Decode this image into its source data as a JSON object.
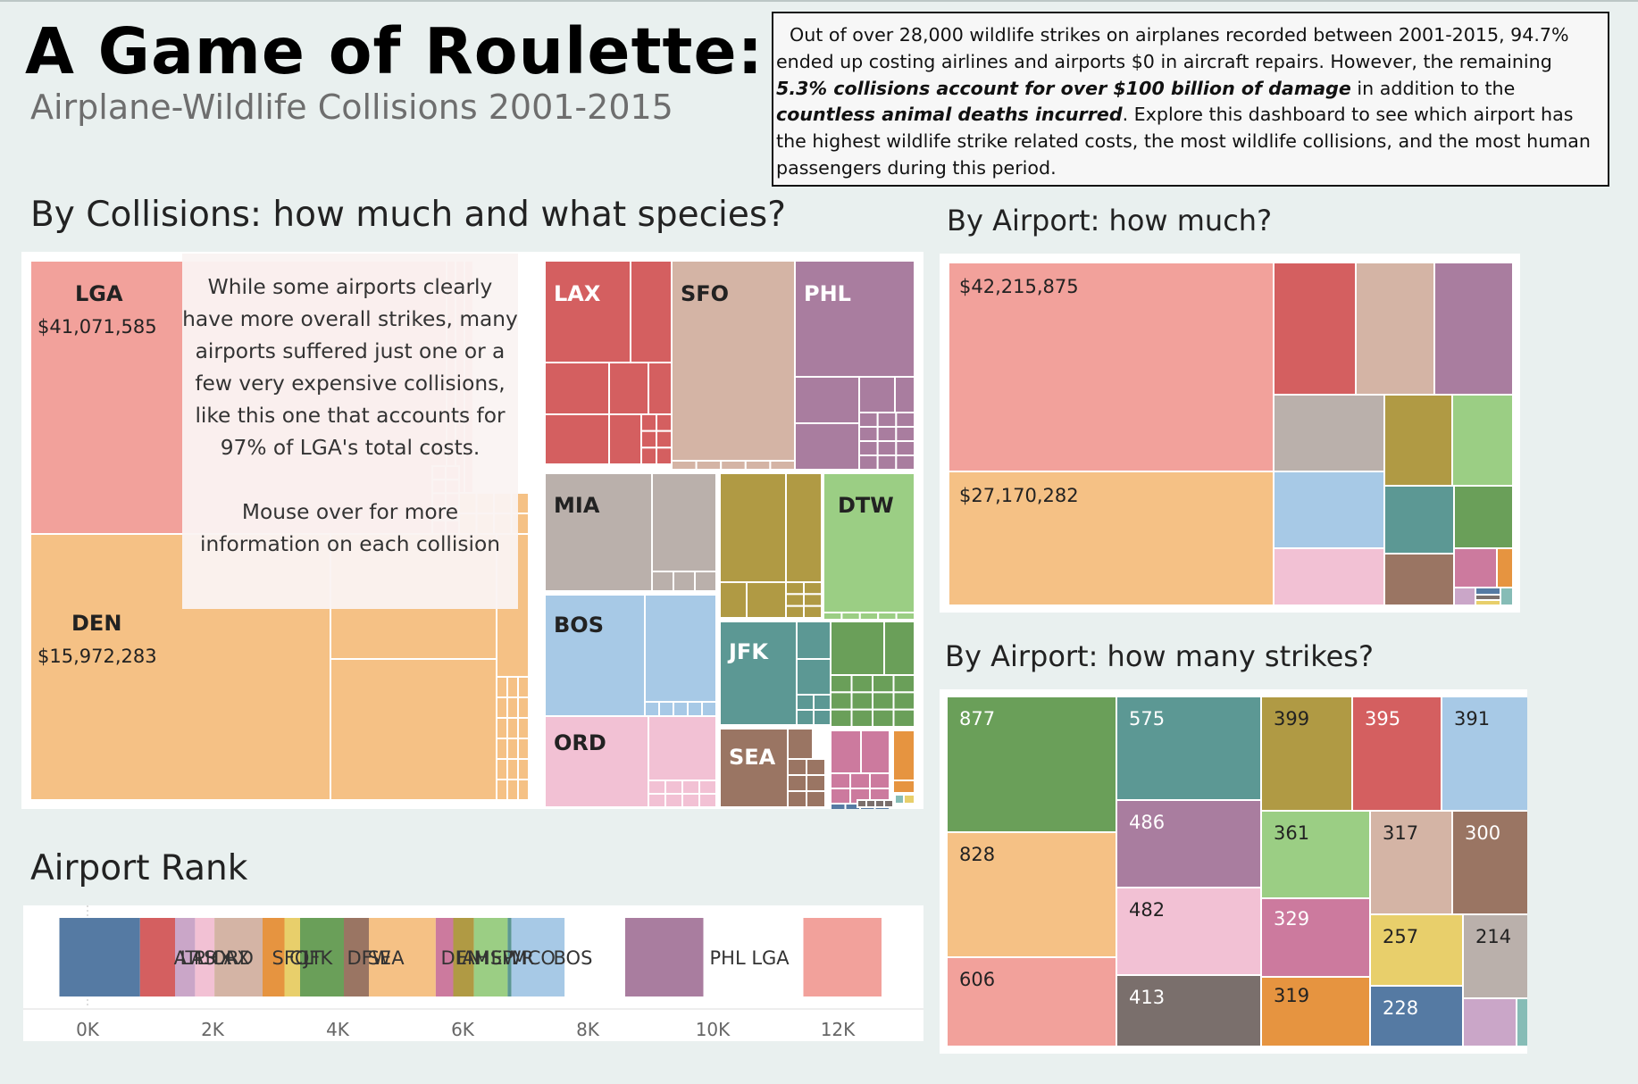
{
  "page": {
    "title": "A Game of Roulette:",
    "subtitle": "Airplane-Wildlife Collisions 2001-2015",
    "intro": {
      "p1": "Out of over 28,000 wildlife strikes on airplanes recorded between 2001-2015, 94.7% ended up costing airlines and airports $0 in aircraft repairs. However, the remaining ",
      "b1": "5.3% collisions account for over $100 billion of damage",
      "p2": " in addition to the ",
      "b2": "countless animal deaths incurred",
      "p3": ". Explore this dashboard to see which airport has the highest wildlife strike related costs, the most wildlife collisions, and the most human passengers during this period."
    }
  },
  "colors": {
    "LGA": "#f2a19b",
    "DEN": "#f5c185",
    "LAX": "#d45f60",
    "SFO": "#d4b4a5",
    "PHL": "#a97d9f",
    "MIA": "#bab0ab",
    "DTW": "#9bce84",
    "BOS": "#a7c9e6",
    "ORD": "#f2c1d4",
    "JFK": "#5c9894",
    "SEA": "#9a7563",
    "OLIVE": "#b09a44",
    "GREEN": "#6a9f59",
    "PINK": "#cc7a9e",
    "ORANGE": "#e69440",
    "YELLOW": "#e8cf6b",
    "BLUE": "#557aa3",
    "DARK": "#7a6f6c",
    "LAVENDER": "#caa6c8",
    "TEAL": "#86bcb6"
  },
  "collisions": {
    "title": "By Collisions: how much and what species?",
    "labels": {
      "LGA": "LGA",
      "LGA_value": "$41,071,585",
      "DEN": "DEN",
      "DEN_value": "$15,972,283",
      "LAX": "LAX",
      "SFO": "SFO",
      "PHL": "PHL",
      "MIA": "MIA",
      "DTW": "DTW",
      "BOS": "BOS",
      "JFK": "JFK",
      "ORD": "ORD",
      "SEA": "SEA"
    },
    "callout": {
      "text1": "While some airports clearly have more overall strikes, many airports suffered just one or a few very expensive collisions, like this one that accounts for 97% of LGA's total costs.",
      "text2": "Mouse over for more information on each collision"
    }
  },
  "cost": {
    "title": "By Airport: how much?",
    "labels": {
      "LGA": "$42,215,875",
      "DEN": "$27,170,282"
    }
  },
  "strikes": {
    "title": "By Airport: how many strikes?",
    "labels": {
      "GREEN": "877",
      "JFK": "575",
      "OLIVE": "399",
      "LAX": "395",
      "BOS": "391",
      "PHL": "486",
      "DEN": "828",
      "DTW": "361",
      "SFO": "317",
      "SEA": "300",
      "ORD": "482",
      "PINK": "329",
      "YELLOW": "257",
      "MIA": "214",
      "LGA": "606",
      "DARK": "413",
      "ORANGE": "319",
      "BLUE": "228"
    }
  },
  "rank": {
    "title": "Airport Rank",
    "inline_labels": [
      "ATL LAX",
      "LAS",
      "PHX",
      "ORD",
      "SFO",
      "CLT",
      "JFK",
      "DFW",
      "SEA",
      "DEN",
      "IAH",
      "MSP",
      "EWR",
      "MCO",
      "BOS",
      "PHL LGA"
    ]
  },
  "chart_data": [
    {
      "type": "treemap",
      "title": "By Collisions: how much and what species?",
      "groups": [
        {
          "name": "LGA",
          "value": 41071585
        },
        {
          "name": "DEN",
          "value": 15972283
        },
        {
          "name": "LAX"
        },
        {
          "name": "SFO"
        },
        {
          "name": "PHL"
        },
        {
          "name": "MIA"
        },
        {
          "name": "DTW"
        },
        {
          "name": "BOS"
        },
        {
          "name": "JFK"
        },
        {
          "name": "ORD"
        },
        {
          "name": "SEA"
        }
      ]
    },
    {
      "type": "treemap",
      "title": "By Airport: how much?",
      "values": [
        42215875,
        27170282
      ]
    },
    {
      "type": "treemap",
      "title": "By Airport: how many strikes?",
      "values": [
        877,
        828,
        606,
        575,
        486,
        482,
        413,
        399,
        395,
        391,
        361,
        329,
        319,
        317,
        300,
        257,
        228,
        214
      ]
    },
    {
      "type": "bar",
      "title": "Airport Rank",
      "orientation": "horizontal-stacked",
      "xticks": [
        "0K",
        "2K",
        "4K",
        "6K",
        "8K",
        "10K",
        "12K"
      ],
      "xlim": [
        0,
        13500
      ],
      "segments": [
        {
          "color": "BLUE",
          "start": -450,
          "end": 840
        },
        {
          "color": "LAX",
          "start": 840,
          "end": 1400
        },
        {
          "color": "LAVENDER",
          "start": 1400,
          "end": 1720
        },
        {
          "color": "ORD",
          "start": 1720,
          "end": 2030
        },
        {
          "color": "SFO",
          "start": 2030,
          "end": 2800
        },
        {
          "color": "ORANGE",
          "start": 2800,
          "end": 3150
        },
        {
          "color": "YELLOW",
          "start": 3150,
          "end": 3400
        },
        {
          "color": "GREEN",
          "start": 3400,
          "end": 4100
        },
        {
          "color": "SEA",
          "start": 4100,
          "end": 4500
        },
        {
          "color": "DEN",
          "start": 4500,
          "end": 5570
        },
        {
          "color": "PINK",
          "start": 5570,
          "end": 5850
        },
        {
          "color": "OLIVE",
          "start": 5850,
          "end": 6180
        },
        {
          "color": "DTW",
          "start": 6180,
          "end": 6720
        },
        {
          "color": "JFK",
          "start": 6720,
          "end": 6780
        },
        {
          "color": "BOS",
          "start": 6780,
          "end": 7630
        },
        {
          "color": "PHL",
          "start": 8600,
          "end": 9850
        },
        {
          "color": "LGA",
          "start": 11450,
          "end": 12700
        }
      ]
    }
  ]
}
